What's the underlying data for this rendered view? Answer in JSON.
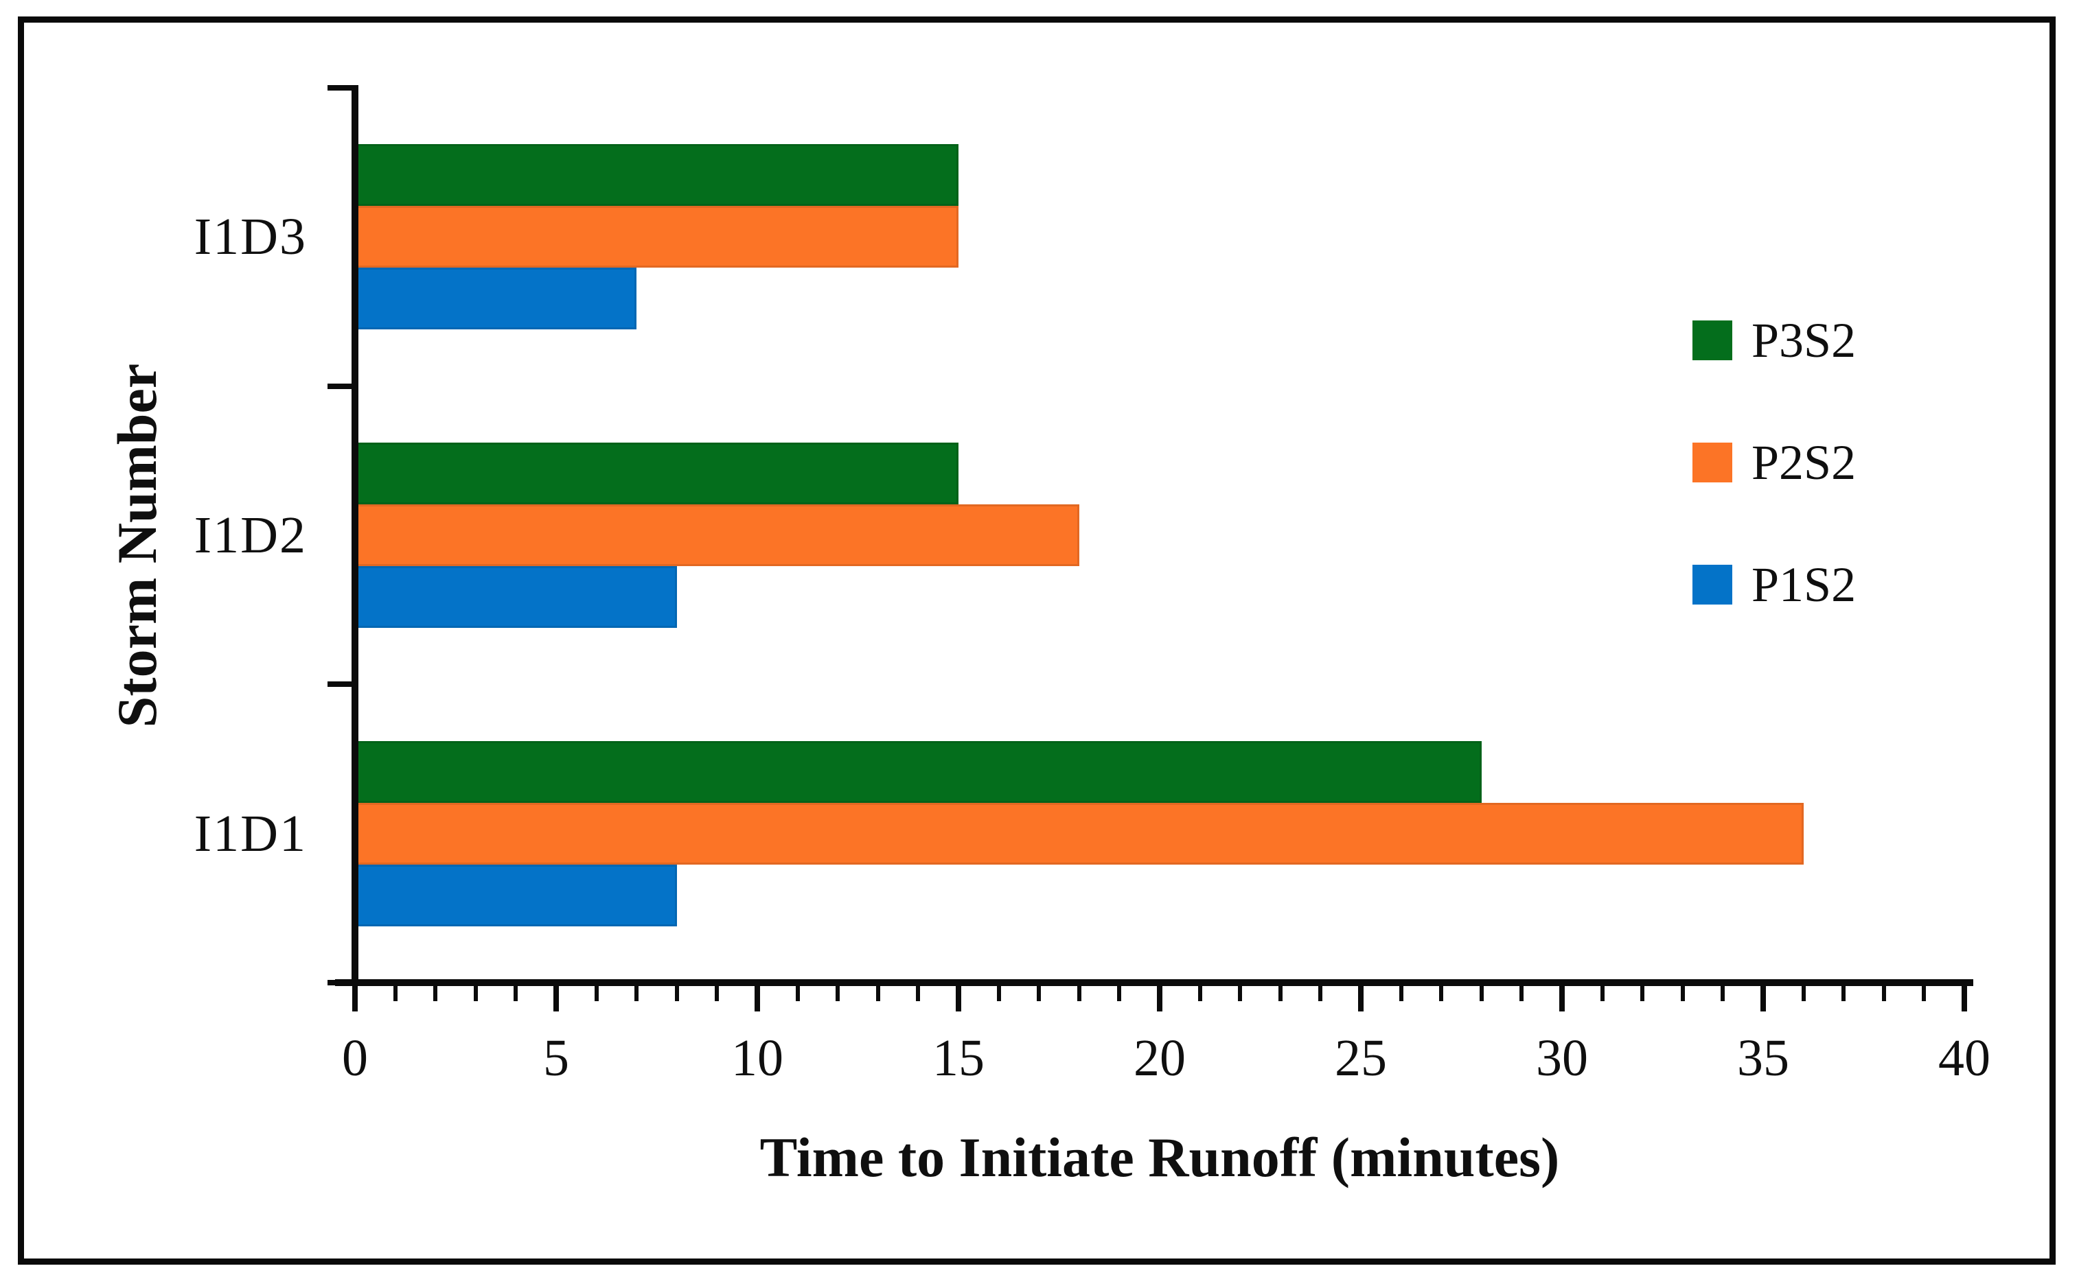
{
  "chart_data": {
    "type": "bar",
    "orientation": "horizontal",
    "title": "",
    "xlabel": "Time to Initiate Runoff (minutes)",
    "ylabel": "Storm Number",
    "categories": [
      "I1D3",
      "I1D2",
      "I1D1"
    ],
    "series": [
      {
        "name": "P3S2",
        "color": "#046e1c",
        "values": [
          15,
          15,
          28
        ]
      },
      {
        "name": "P2S2",
        "color": "#fc7426",
        "values": [
          15,
          18,
          36
        ]
      },
      {
        "name": "P1S2",
        "color": "#0473c8",
        "values": [
          7,
          8,
          8
        ]
      }
    ],
    "xlim": [
      0,
      40
    ],
    "x_major_ticks": [
      0,
      5,
      10,
      15,
      20,
      25,
      30,
      35,
      40
    ],
    "x_minor_tick_step": 1,
    "grid": false,
    "legend": {
      "position": "right-inside",
      "entries": [
        "P3S2",
        "P2S2",
        "P1S2"
      ]
    },
    "axis_color": "#0b0b0b",
    "frame_color": "#0a0a0a",
    "background_color": "#ffffff"
  }
}
